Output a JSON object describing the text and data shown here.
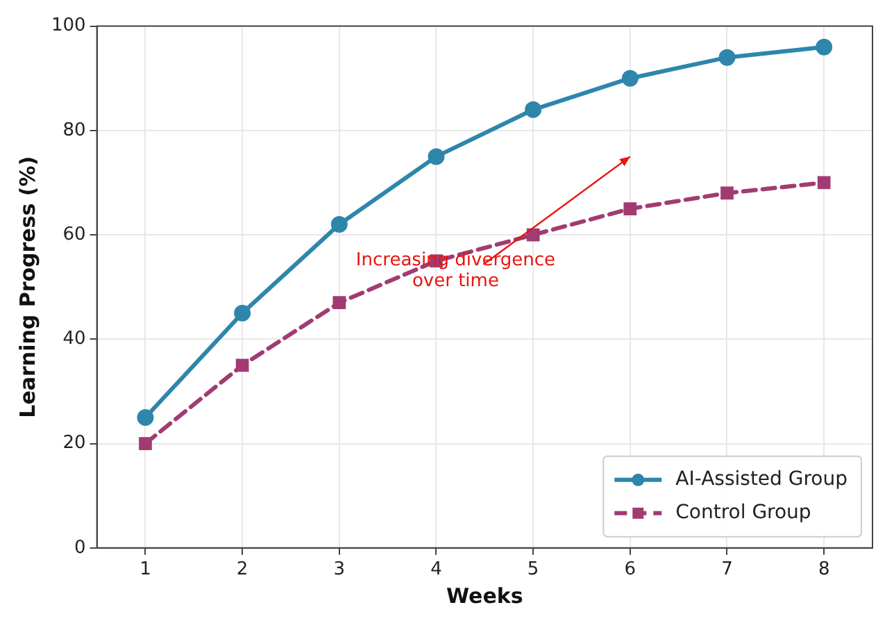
{
  "chart_data": {
    "type": "line",
    "xlabel": "Weeks",
    "ylabel": "Learning Progress (%)",
    "x": [
      1,
      2,
      3,
      4,
      5,
      6,
      7,
      8
    ],
    "series": [
      {
        "name": "AI-Assisted Group",
        "color": "#2e86ab",
        "values": [
          25,
          45,
          62,
          75,
          84,
          90,
          94,
          96
        ],
        "marker": "circle",
        "line_style": "solid"
      },
      {
        "name": "Control Group",
        "color": "#a23b72",
        "values": [
          20,
          35,
          47,
          55,
          60,
          65,
          68,
          70
        ],
        "marker": "square",
        "line_style": "dashed"
      }
    ],
    "xlim": [
      0.5,
      8.5
    ],
    "xticks": [
      1,
      2,
      3,
      4,
      5,
      6,
      7,
      8
    ],
    "ylim": [
      0,
      100
    ],
    "yticks": [
      0,
      20,
      40,
      60,
      80,
      100
    ],
    "grid": true,
    "legend": "bottom right",
    "annotations": [
      "Increasing divergence\nover time"
    ]
  }
}
